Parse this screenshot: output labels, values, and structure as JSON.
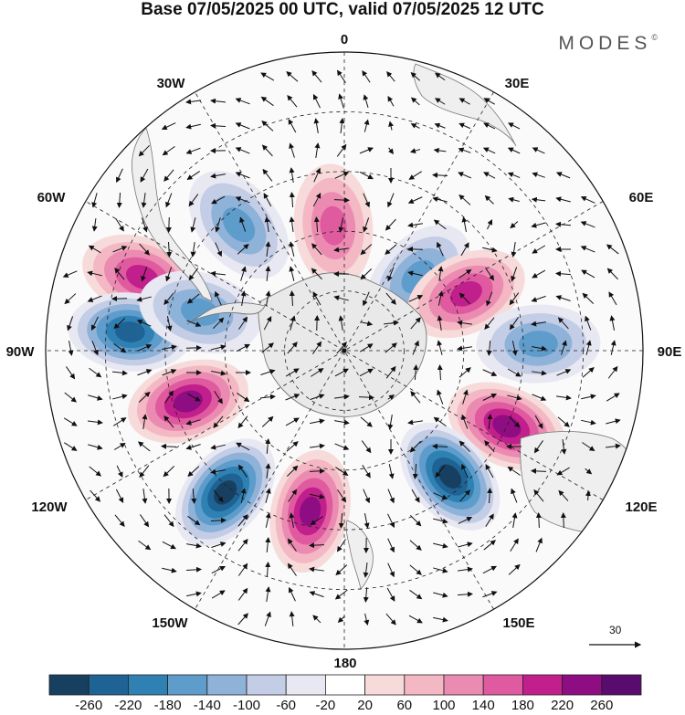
{
  "title": "Base 07/05/2025 00 UTC, valid 07/05/2025 12 UTC",
  "brand": "MODES",
  "brand_mark": "©",
  "map": {
    "projection": "south-polar-stereographic",
    "longitude_labels": [
      {
        "id": "lon-0",
        "text": "0"
      },
      {
        "id": "lon-30e",
        "text": "30E"
      },
      {
        "id": "lon-60e",
        "text": "60E"
      },
      {
        "id": "lon-90e",
        "text": "90E"
      },
      {
        "id": "lon-120e",
        "text": "120E"
      },
      {
        "id": "lon-150e",
        "text": "150E"
      },
      {
        "id": "lon-180",
        "text": "180"
      },
      {
        "id": "lon-150w",
        "text": "150W"
      },
      {
        "id": "lon-120w",
        "text": "120W"
      },
      {
        "id": "lon-90w",
        "text": "90W"
      },
      {
        "id": "lon-60w",
        "text": "60W"
      },
      {
        "id": "lon-30w",
        "text": "30W"
      }
    ],
    "reference_vector": "30",
    "anomaly_centers": [
      {
        "sign": "positive",
        "strength": 0.85,
        "lon": -70,
        "ring": 0.72
      },
      {
        "sign": "negative",
        "strength": 0.55,
        "lon": -40,
        "ring": 0.55
      },
      {
        "sign": "positive",
        "strength": 0.65,
        "lon": -5,
        "ring": 0.42
      },
      {
        "sign": "negative",
        "strength": 0.55,
        "lon": 45,
        "ring": 0.35
      },
      {
        "sign": "positive",
        "strength": 0.75,
        "lon": 65,
        "ring": 0.45
      },
      {
        "sign": "negative",
        "strength": 0.55,
        "lon": 88,
        "ring": 0.65
      },
      {
        "sign": "positive",
        "strength": 0.95,
        "lon": 115,
        "ring": 0.6
      },
      {
        "sign": "negative",
        "strength": 1.0,
        "lon": 140,
        "ring": 0.55
      },
      {
        "sign": "positive",
        "strength": 0.95,
        "lon": -168,
        "ring": 0.55
      },
      {
        "sign": "negative",
        "strength": 1.0,
        "lon": -140,
        "ring": 0.62
      },
      {
        "sign": "positive",
        "strength": 0.95,
        "lon": -108,
        "ring": 0.55
      },
      {
        "sign": "negative",
        "strength": 0.9,
        "lon": -85,
        "ring": 0.72
      },
      {
        "sign": "negative",
        "strength": 0.6,
        "lon": -75,
        "ring": 0.5
      }
    ]
  },
  "colorbar": {
    "colors": [
      "#173f5f",
      "#1f6294",
      "#2f81b4",
      "#5e9ccb",
      "#8fb2d9",
      "#c3cde6",
      "#e8e8f3",
      "#ffffff",
      "#f7dada",
      "#f3b8c3",
      "#ec8bb2",
      "#e05aa0",
      "#c01f8c",
      "#8e0d83",
      "#5a0b6e"
    ],
    "tick_labels": [
      "-260",
      "-220",
      "-180",
      "-140",
      "-100",
      "-60",
      "-20",
      "20",
      "60",
      "100",
      "140",
      "180",
      "220",
      "260"
    ]
  }
}
